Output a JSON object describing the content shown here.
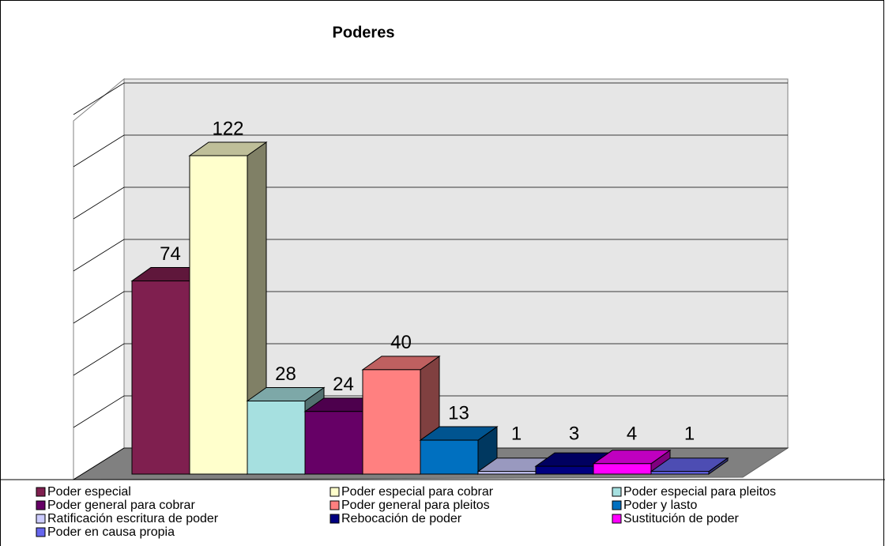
{
  "chart_data": {
    "type": "bar3d",
    "title": "Poderes",
    "categories": [
      "Poder especial",
      "Poder especial para cobrar",
      "Poder especial para pleitos",
      "Poder general para cobrar",
      "Poder general para pleitos",
      "Poder y lasto",
      "Ratificación escritura de poder",
      "Rebocación de poder",
      "Sustitución de poder",
      "Poder en causa propia"
    ],
    "values": [
      74,
      122,
      28,
      24,
      40,
      13,
      1,
      3,
      4,
      1
    ],
    "colors": [
      "#7f1f4f",
      "#ffffcc",
      "#a6e0e0",
      "#660066",
      "#ff8080",
      "#0070c0",
      "#ccccff",
      "#000080",
      "#ff00ff",
      "#6666ee"
    ],
    "ylim": [
      0,
      140
    ],
    "yticks": [
      0,
      20,
      40,
      60,
      80,
      100,
      120,
      140
    ],
    "grid": true
  }
}
